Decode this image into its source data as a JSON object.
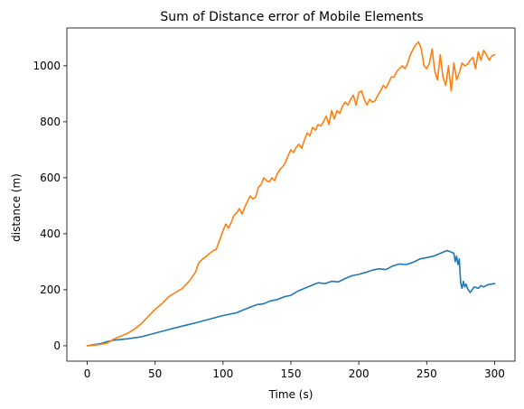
{
  "chart_data": {
    "type": "line",
    "title": "Sum of Distance error of Mobile Elements",
    "xlabel": "Time (s)",
    "ylabel": "distance (m)",
    "xlim": [
      -15,
      315
    ],
    "ylim": [
      -55,
      1135
    ],
    "xticks": [
      0,
      50,
      100,
      150,
      200,
      250,
      300
    ],
    "yticks": [
      0,
      200,
      400,
      600,
      800,
      1000
    ],
    "grid": false,
    "series": [
      {
        "color": "#1f77b4",
        "points": [
          [
            0,
            0
          ],
          [
            10,
            8
          ],
          [
            15,
            15
          ],
          [
            20,
            20
          ],
          [
            30,
            25
          ],
          [
            40,
            32
          ],
          [
            50,
            45
          ],
          [
            60,
            58
          ],
          [
            70,
            70
          ],
          [
            80,
            82
          ],
          [
            90,
            95
          ],
          [
            100,
            108
          ],
          [
            110,
            118
          ],
          [
            115,
            128
          ],
          [
            120,
            138
          ],
          [
            125,
            147
          ],
          [
            130,
            150
          ],
          [
            135,
            160
          ],
          [
            140,
            165
          ],
          [
            145,
            175
          ],
          [
            150,
            180
          ],
          [
            155,
            195
          ],
          [
            160,
            205
          ],
          [
            165,
            215
          ],
          [
            170,
            225
          ],
          [
            175,
            222
          ],
          [
            180,
            230
          ],
          [
            185,
            228
          ],
          [
            190,
            240
          ],
          [
            195,
            250
          ],
          [
            200,
            255
          ],
          [
            205,
            262
          ],
          [
            210,
            270
          ],
          [
            215,
            275
          ],
          [
            220,
            272
          ],
          [
            225,
            285
          ],
          [
            230,
            292
          ],
          [
            235,
            290
          ],
          [
            240,
            298
          ],
          [
            245,
            310
          ],
          [
            250,
            315
          ],
          [
            255,
            320
          ],
          [
            260,
            330
          ],
          [
            265,
            340
          ],
          [
            268,
            335
          ],
          [
            270,
            330
          ],
          [
            271,
            300
          ],
          [
            272,
            320
          ],
          [
            273,
            290
          ],
          [
            274,
            310
          ],
          [
            275,
            225
          ],
          [
            276,
            205
          ],
          [
            277,
            230
          ],
          [
            278,
            210
          ],
          [
            279,
            220
          ],
          [
            280,
            205
          ],
          [
            282,
            190
          ],
          [
            285,
            210
          ],
          [
            288,
            205
          ],
          [
            290,
            215
          ],
          [
            292,
            210
          ],
          [
            295,
            218
          ],
          [
            300,
            222
          ]
        ]
      },
      {
        "color": "#ff7f0e",
        "points": [
          [
            0,
            0
          ],
          [
            10,
            5
          ],
          [
            15,
            10
          ],
          [
            20,
            25
          ],
          [
            25,
            35
          ],
          [
            30,
            45
          ],
          [
            35,
            60
          ],
          [
            40,
            80
          ],
          [
            45,
            105
          ],
          [
            50,
            130
          ],
          [
            55,
            150
          ],
          [
            60,
            175
          ],
          [
            65,
            190
          ],
          [
            70,
            205
          ],
          [
            75,
            230
          ],
          [
            80,
            265
          ],
          [
            82,
            295
          ],
          [
            85,
            310
          ],
          [
            88,
            320
          ],
          [
            90,
            330
          ],
          [
            93,
            340
          ],
          [
            95,
            345
          ],
          [
            97,
            370
          ],
          [
            100,
            410
          ],
          [
            102,
            435
          ],
          [
            104,
            420
          ],
          [
            106,
            440
          ],
          [
            108,
            465
          ],
          [
            110,
            475
          ],
          [
            112,
            490
          ],
          [
            114,
            470
          ],
          [
            116,
            495
          ],
          [
            118,
            515
          ],
          [
            120,
            535
          ],
          [
            122,
            525
          ],
          [
            124,
            530
          ],
          [
            126,
            565
          ],
          [
            128,
            575
          ],
          [
            130,
            600
          ],
          [
            132,
            590
          ],
          [
            134,
            585
          ],
          [
            136,
            600
          ],
          [
            138,
            590
          ],
          [
            140,
            615
          ],
          [
            142,
            630
          ],
          [
            144,
            640
          ],
          [
            146,
            655
          ],
          [
            148,
            680
          ],
          [
            150,
            700
          ],
          [
            152,
            690
          ],
          [
            154,
            710
          ],
          [
            156,
            720
          ],
          [
            158,
            705
          ],
          [
            160,
            735
          ],
          [
            162,
            760
          ],
          [
            164,
            750
          ],
          [
            166,
            780
          ],
          [
            168,
            770
          ],
          [
            170,
            790
          ],
          [
            172,
            785
          ],
          [
            174,
            800
          ],
          [
            176,
            820
          ],
          [
            178,
            790
          ],
          [
            180,
            840
          ],
          [
            182,
            810
          ],
          [
            184,
            840
          ],
          [
            186,
            830
          ],
          [
            188,
            855
          ],
          [
            190,
            870
          ],
          [
            192,
            860
          ],
          [
            194,
            880
          ],
          [
            196,
            895
          ],
          [
            198,
            860
          ],
          [
            200,
            905
          ],
          [
            202,
            910
          ],
          [
            204,
            880
          ],
          [
            206,
            860
          ],
          [
            208,
            880
          ],
          [
            210,
            870
          ],
          [
            212,
            875
          ],
          [
            214,
            895
          ],
          [
            216,
            910
          ],
          [
            218,
            930
          ],
          [
            220,
            920
          ],
          [
            222,
            940
          ],
          [
            224,
            960
          ],
          [
            226,
            960
          ],
          [
            228,
            980
          ],
          [
            230,
            990
          ],
          [
            232,
            1000
          ],
          [
            234,
            990
          ],
          [
            236,
            1010
          ],
          [
            238,
            1040
          ],
          [
            240,
            1060
          ],
          [
            242,
            1075
          ],
          [
            244,
            1085
          ],
          [
            246,
            1060
          ],
          [
            248,
            1000
          ],
          [
            250,
            990
          ],
          [
            252,
            1010
          ],
          [
            254,
            1060
          ],
          [
            256,
            980
          ],
          [
            258,
            950
          ],
          [
            260,
            1040
          ],
          [
            262,
            960
          ],
          [
            264,
            930
          ],
          [
            266,
            1000
          ],
          [
            268,
            910
          ],
          [
            270,
            1010
          ],
          [
            272,
            950
          ],
          [
            274,
            975
          ],
          [
            276,
            1010
          ],
          [
            278,
            1000
          ],
          [
            280,
            1005
          ],
          [
            282,
            1020
          ],
          [
            284,
            1030
          ],
          [
            286,
            990
          ],
          [
            288,
            1050
          ],
          [
            290,
            1020
          ],
          [
            292,
            1055
          ],
          [
            294,
            1040
          ],
          [
            296,
            1020
          ],
          [
            298,
            1035
          ],
          [
            300,
            1040
          ]
        ]
      }
    ]
  }
}
